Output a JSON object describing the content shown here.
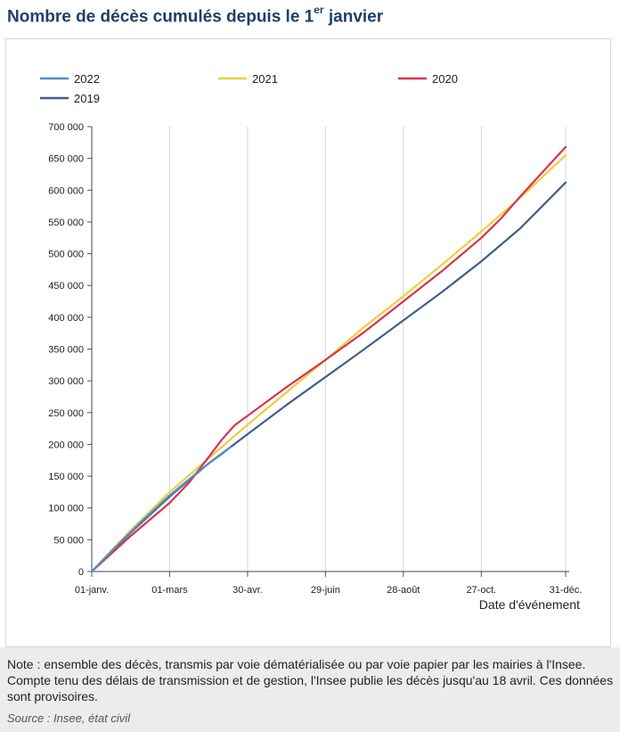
{
  "header": {
    "title_main": "Nombre de décès cumulés depuis le 1",
    "title_sup": "er",
    "title_end": " janvier"
  },
  "note": "Note : ensemble des décès, transmis par voie dématérialisée ou par voie papier par les mairies à l'Insee. Compte tenu des délais de transmission et de gestion, l'Insee publie les décès jusqu'au 18 avril. Ces données sont provisoires.",
  "source": "Source : Insee, état civil",
  "chart_data": {
    "type": "line",
    "title": "Nombre de décès cumulés depuis le 1er janvier",
    "xlabel": "Date d'événement",
    "ylabel": "",
    "ylim": [
      0,
      700000
    ],
    "xlim_days": [
      1,
      366
    ],
    "x_ticks": [
      {
        "label": "01-janv.",
        "day": 1
      },
      {
        "label": "01-mars",
        "day": 61
      },
      {
        "label": "30-avr.",
        "day": 121
      },
      {
        "label": "29-juin",
        "day": 181
      },
      {
        "label": "28-août",
        "day": 241
      },
      {
        "label": "27-oct.",
        "day": 301
      },
      {
        "label": "31-déc.",
        "day": 366
      }
    ],
    "y_ticks": [
      {
        "label": "0",
        "value": 0
      },
      {
        "label": "50 000",
        "value": 50000
      },
      {
        "label": "100 000",
        "value": 100000
      },
      {
        "label": "150 000",
        "value": 150000
      },
      {
        "label": "200 000",
        "value": 200000
      },
      {
        "label": "250 000",
        "value": 250000
      },
      {
        "label": "300 000",
        "value": 300000
      },
      {
        "label": "350 000",
        "value": 350000
      },
      {
        "label": "400 000",
        "value": 400000
      },
      {
        "label": "450 000",
        "value": 450000
      },
      {
        "label": "500 000",
        "value": 500000
      },
      {
        "label": "550 000",
        "value": 550000
      },
      {
        "label": "600 000",
        "value": 600000
      },
      {
        "label": "650 000",
        "value": 650000
      },
      {
        "label": "700 000",
        "value": 700000
      }
    ],
    "grid": "vertical",
    "legend_position": "top",
    "series": [
      {
        "name": "2022",
        "color": "#4a8fc9",
        "points": [
          [
            1,
            0
          ],
          [
            20,
            40000
          ],
          [
            40,
            80000
          ],
          [
            60,
            118000
          ],
          [
            76,
            145000
          ],
          [
            91,
            170000
          ],
          [
            100,
            183000
          ],
          [
            108,
            196000
          ]
        ]
      },
      {
        "name": "2021",
        "color": "#f0cd3c",
        "points": [
          [
            1,
            0
          ],
          [
            31,
            65000
          ],
          [
            61,
            125000
          ],
          [
            91,
            178000
          ],
          [
            121,
            231000
          ],
          [
            151,
            282000
          ],
          [
            181,
            333000
          ],
          [
            211,
            385000
          ],
          [
            241,
            433000
          ],
          [
            271,
            483000
          ],
          [
            301,
            535000
          ],
          [
            331,
            588000
          ],
          [
            366,
            655000
          ]
        ]
      },
      {
        "name": "2020",
        "color": "#d8334f",
        "points": [
          [
            1,
            0
          ],
          [
            31,
            56000
          ],
          [
            61,
            108000
          ],
          [
            76,
            140000
          ],
          [
            91,
            180000
          ],
          [
            101,
            207000
          ],
          [
            111,
            230000
          ],
          [
            121,
            245000
          ],
          [
            151,
            290000
          ],
          [
            181,
            333000
          ],
          [
            211,
            377000
          ],
          [
            241,
            425000
          ],
          [
            271,
            473000
          ],
          [
            301,
            525000
          ],
          [
            316,
            555000
          ],
          [
            331,
            590000
          ],
          [
            366,
            668000
          ]
        ]
      },
      {
        "name": "2019",
        "color": "#3f5f8a",
        "points": [
          [
            1,
            0
          ],
          [
            31,
            61000
          ],
          [
            61,
            118000
          ],
          [
            91,
            170000
          ],
          [
            121,
            216000
          ],
          [
            151,
            262000
          ],
          [
            181,
            306000
          ],
          [
            211,
            350000
          ],
          [
            241,
            395000
          ],
          [
            271,
            440000
          ],
          [
            301,
            488000
          ],
          [
            331,
            540000
          ],
          [
            366,
            612000
          ]
        ]
      }
    ]
  }
}
